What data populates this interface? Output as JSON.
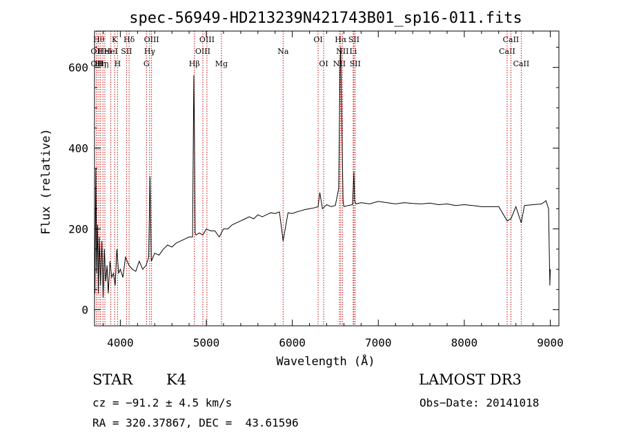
{
  "chart_data": {
    "type": "line",
    "title": "spec-56949-HD213239N421743B01_sp16-011.fits",
    "xlabel": "Wavelength (Å)",
    "ylabel": "Flux (relative)",
    "xlim": [
      3700,
      9100
    ],
    "ylim": [
      -40,
      690
    ],
    "xticks": [
      4000,
      5000,
      6000,
      7000,
      8000,
      9000
    ],
    "yticks": [
      0,
      200,
      400,
      600
    ],
    "grid": false,
    "line_color": "#000000",
    "marker_color": "#cc0000",
    "series": [
      {
        "x": [
          3705,
          3715,
          3725,
          3735,
          3745,
          3755,
          3770,
          3785,
          3800,
          3815,
          3830,
          3845,
          3860,
          3880,
          3900,
          3920,
          3940,
          3960,
          3980,
          4000,
          4030,
          4060,
          4100,
          4140,
          4180,
          4220,
          4260,
          4300,
          4330,
          4345,
          4360,
          4400,
          4450,
          4500,
          4550,
          4600,
          4650,
          4700,
          4750,
          4800,
          4840,
          4855,
          4861,
          4870,
          4880,
          4920,
          4960,
          5000,
          5050,
          5100,
          5150,
          5200,
          5250,
          5300,
          5350,
          5400,
          5450,
          5500,
          5550,
          5600,
          5650,
          5700,
          5750,
          5800,
          5850,
          5893,
          5950,
          6000,
          6050,
          6100,
          6150,
          6200,
          6250,
          6300,
          6320,
          6350,
          6400,
          6450,
          6500,
          6540,
          6555,
          6563,
          6575,
          6590,
          6600,
          6650,
          6700,
          6716,
          6725,
          6740,
          6800,
          6900,
          7000,
          7100,
          7200,
          7300,
          7400,
          7500,
          7600,
          7700,
          7800,
          7900,
          8000,
          8100,
          8200,
          8300,
          8400,
          8498,
          8542,
          8600,
          8662,
          8700,
          8800,
          8900,
          8950,
          8980,
          8995,
          9000
        ],
        "values": [
          40,
          350,
          90,
          210,
          40,
          180,
          60,
          170,
          30,
          150,
          70,
          110,
          40,
          120,
          80,
          90,
          60,
          150,
          90,
          100,
          80,
          130,
          110,
          100,
          95,
          120,
          100,
          110,
          130,
          330,
          120,
          140,
          135,
          150,
          160,
          155,
          165,
          170,
          175,
          180,
          180,
          580,
          450,
          190,
          185,
          190,
          185,
          200,
          195,
          195,
          180,
          200,
          200,
          210,
          215,
          220,
          225,
          230,
          225,
          235,
          230,
          235,
          240,
          238,
          242,
          170,
          240,
          238,
          242,
          245,
          248,
          250,
          252,
          255,
          290,
          250,
          260,
          255,
          258,
          300,
          600,
          650,
          470,
          270,
          255,
          258,
          260,
          340,
          270,
          262,
          265,
          262,
          268,
          265,
          262,
          265,
          263,
          262,
          264,
          260,
          262,
          258,
          260,
          258,
          255,
          255,
          255,
          220,
          225,
          255,
          215,
          258,
          260,
          262,
          270,
          250,
          60,
          100
        ]
      }
    ],
    "lines": [
      {
        "x": 3726,
        "label": "OII",
        "row": 2
      },
      {
        "x": 3727,
        "label": "OII",
        "row": 3
      },
      {
        "x": 3750,
        "label": "Hθ",
        "row": 1
      },
      {
        "x": 3770,
        "label": "Hη",
        "row": 3
      },
      {
        "x": 3798,
        "label": "Hη",
        "row": 3
      },
      {
        "x": 3820,
        "label": "HeI",
        "row": 2
      },
      {
        "x": 3889,
        "label": "HeI",
        "row": 2
      },
      {
        "x": 3934,
        "label": "K",
        "row": 1
      },
      {
        "x": 3968,
        "label": "H",
        "row": 3
      },
      {
        "x": 4072,
        "label": "SII",
        "row": 2
      },
      {
        "x": 4102,
        "label": "Hδ",
        "row": 1
      },
      {
        "x": 4304,
        "label": "G",
        "row": 3
      },
      {
        "x": 4341,
        "label": "Hγ",
        "row": 2
      },
      {
        "x": 4363,
        "label": "OIII",
        "row": 1
      },
      {
        "x": 4861,
        "label": "Hβ",
        "row": 3
      },
      {
        "x": 4959,
        "label": "OIII",
        "row": 2
      },
      {
        "x": 5007,
        "label": "OIII",
        "row": 1
      },
      {
        "x": 5176,
        "label": "Mg",
        "row": 3
      },
      {
        "x": 5893,
        "label": "Na",
        "row": 2
      },
      {
        "x": 6300,
        "label": "OI",
        "row": 1
      },
      {
        "x": 6364,
        "label": "OI",
        "row": 3
      },
      {
        "x": 6548,
        "label": "NII",
        "row": 3
      },
      {
        "x": 6563,
        "label": "Hα",
        "row": 1
      },
      {
        "x": 6583,
        "label": "NII",
        "row": 2
      },
      {
        "x": 6708,
        "label": "Li",
        "row": 2
      },
      {
        "x": 6716,
        "label": "SII",
        "row": 1
      },
      {
        "x": 6731,
        "label": "SII",
        "row": 3
      },
      {
        "x": 8498,
        "label": "CaII",
        "row": 2
      },
      {
        "x": 8542,
        "label": "CaII",
        "row": 1
      },
      {
        "x": 8662,
        "label": "CaII",
        "row": 3
      }
    ]
  },
  "info": {
    "object_class": "STAR",
    "subclass": "K4",
    "survey": "LAMOST DR3",
    "cz": "cz = −91.2 ± 4.5 km/s",
    "obs_date": "Obs−Date: 20141018",
    "coords": "RA = 320.37867, DEC =  43.61596"
  }
}
